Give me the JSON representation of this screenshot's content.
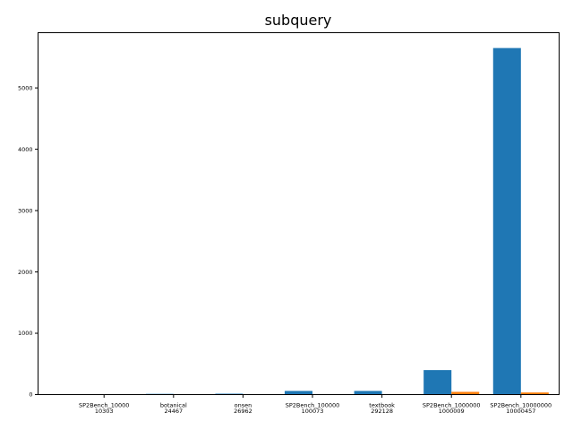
{
  "chart_data": {
    "type": "bar",
    "title": "subquery",
    "xlabel": "",
    "ylabel": "",
    "categories": [
      [
        "SP2Bench_10000",
        "10303"
      ],
      [
        "botanical",
        "24467"
      ],
      [
        "onsen",
        "26962"
      ],
      [
        "SP2Bench_100000",
        "100073"
      ],
      [
        "textbook",
        "292128"
      ],
      [
        "SP2Bench_1000000",
        "1000009"
      ],
      [
        "SP2Bench_10000000",
        "10000457"
      ]
    ],
    "series": [
      {
        "color": "#1f77b4",
        "values": [
          5,
          12,
          15,
          60,
          60,
          400,
          5650
        ]
      },
      {
        "color": "#ff7f0e",
        "values": [
          1,
          2,
          2,
          4,
          4,
          45,
          35
        ]
      }
    ],
    "ylim": [
      0,
      5900
    ],
    "yticks": [
      0,
      1000,
      2000,
      3000,
      4000,
      5000
    ],
    "grid": false,
    "legend": "none"
  }
}
